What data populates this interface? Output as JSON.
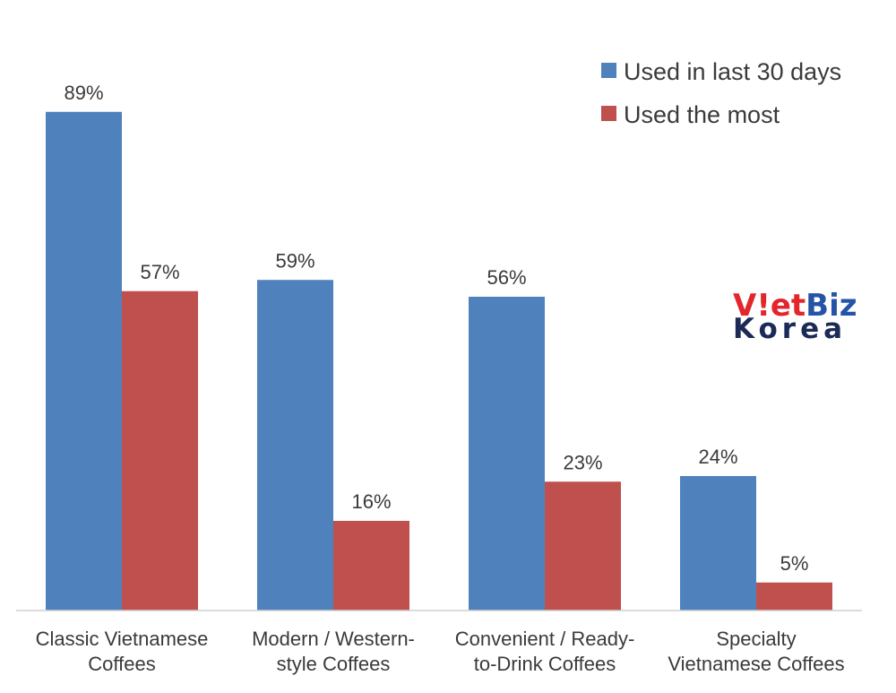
{
  "chart_data": {
    "type": "bar",
    "categories": [
      [
        "Classic Vietnamese",
        "Coffees"
      ],
      [
        "Modern / Western-",
        "style Coffees"
      ],
      [
        "Convenient / Ready-",
        "to-Drink Coffees"
      ],
      [
        "Specialty",
        "Vietnamese Coffees"
      ]
    ],
    "series": [
      {
        "name": "Used in last 30 days",
        "values": [
          89,
          59,
          56,
          24
        ],
        "labels": [
          "89%",
          "59%",
          "56%",
          "24%"
        ],
        "color": "#4f81bd"
      },
      {
        "name": "Used the most",
        "values": [
          57,
          16,
          23,
          5
        ],
        "labels": [
          "57%",
          "16%",
          "23%",
          "5%"
        ],
        "color": "#c0504d"
      }
    ],
    "title": "",
    "xlabel": "",
    "ylabel": "",
    "ylim": [
      0,
      100
    ],
    "grid": false,
    "legend_position": "top-right"
  },
  "logo": {
    "top_text": "VietBiz",
    "bottom_text": "Korea",
    "red": "#e3262b",
    "blue": "#2454a6",
    "navy": "#1c2a56"
  }
}
